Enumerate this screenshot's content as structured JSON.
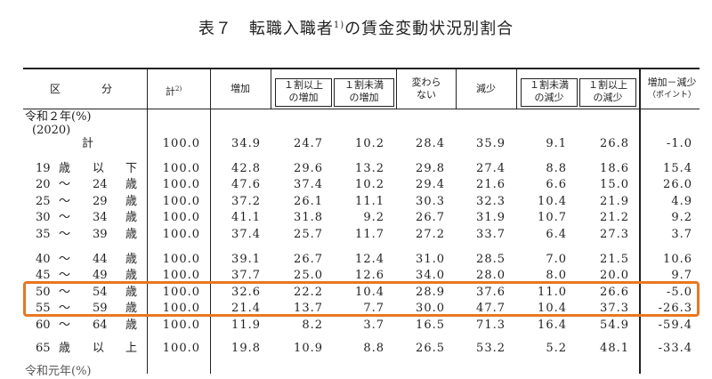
{
  "title": {
    "main": "表７　転職入職者",
    "sup": "1)",
    "tail": "の賃金変動状況別割合"
  },
  "header": {
    "category_1": "区",
    "category_2": "分",
    "total": "計",
    "total_sup": "2)",
    "increase": "増加",
    "inc_10_plus": [
      "１割以上",
      "の増加"
    ],
    "inc_under_10": [
      "１割未満",
      "の増加"
    ],
    "unchanged": [
      "変わら",
      "ない"
    ],
    "decrease": "減少",
    "dec_under_10": [
      "１割未満",
      "の減少"
    ],
    "dec_10_plus": [
      "１割以上",
      "の減少"
    ],
    "net": [
      "増加－減少",
      "（ポイント）"
    ]
  },
  "section": {
    "label": "令和２年(%)",
    "year": "(2020)",
    "next_label": "令和元年(%)"
  },
  "rows": [
    {
      "a": "",
      "b": "計",
      "c": "",
      "d": "",
      "values": [
        "100.0",
        "34.9",
        "24.7",
        "10.2",
        "28.4",
        "35.9",
        "9.1",
        "26.8",
        "-1.0"
      ]
    },
    {
      "a": "19",
      "b": "歳",
      "c": "以",
      "d": "下",
      "values": [
        "100.0",
        "42.8",
        "29.6",
        "13.2",
        "29.8",
        "27.4",
        "8.8",
        "18.6",
        "15.4"
      ]
    },
    {
      "a": "20",
      "b": "～",
      "c": "24",
      "d": "歳",
      "values": [
        "100.0",
        "47.6",
        "37.4",
        "10.2",
        "29.4",
        "21.6",
        "6.6",
        "15.0",
        "26.0"
      ]
    },
    {
      "a": "25",
      "b": "～",
      "c": "29",
      "d": "歳",
      "values": [
        "100.0",
        "37.2",
        "26.1",
        "11.1",
        "30.3",
        "32.3",
        "10.4",
        "21.9",
        "4.9"
      ]
    },
    {
      "a": "30",
      "b": "～",
      "c": "34",
      "d": "歳",
      "values": [
        "100.0",
        "41.1",
        "31.8",
        "9.2",
        "26.7",
        "31.9",
        "10.7",
        "21.2",
        "9.2"
      ]
    },
    {
      "a": "35",
      "b": "～",
      "c": "39",
      "d": "歳",
      "values": [
        "100.0",
        "37.4",
        "25.7",
        "11.7",
        "27.2",
        "33.7",
        "6.4",
        "27.3",
        "3.7"
      ]
    },
    {
      "a": "40",
      "b": "～",
      "c": "44",
      "d": "歳",
      "values": [
        "100.0",
        "39.1",
        "26.7",
        "12.4",
        "31.0",
        "28.5",
        "7.0",
        "21.5",
        "10.6"
      ]
    },
    {
      "a": "45",
      "b": "～",
      "c": "49",
      "d": "歳",
      "values": [
        "100.0",
        "37.7",
        "25.0",
        "12.6",
        "34.0",
        "28.0",
        "8.0",
        "20.0",
        "9.7"
      ]
    },
    {
      "a": "50",
      "b": "～",
      "c": "54",
      "d": "歳",
      "values": [
        "100.0",
        "32.6",
        "22.2",
        "10.4",
        "28.9",
        "37.6",
        "11.0",
        "26.6",
        "-5.0"
      ]
    },
    {
      "a": "55",
      "b": "～",
      "c": "59",
      "d": "歳",
      "values": [
        "100.0",
        "21.4",
        "13.7",
        "7.7",
        "30.0",
        "47.7",
        "10.4",
        "37.3",
        "-26.3"
      ]
    },
    {
      "a": "60",
      "b": "～",
      "c": "64",
      "d": "歳",
      "values": [
        "100.0",
        "11.9",
        "8.2",
        "3.7",
        "16.5",
        "71.3",
        "16.4",
        "54.9",
        "-59.4"
      ]
    },
    {
      "a": "65",
      "b": "歳",
      "c": "以",
      "d": "上",
      "values": [
        "100.0",
        "19.8",
        "10.9",
        "8.8",
        "26.5",
        "53.2",
        "5.2",
        "48.1",
        "-33.4"
      ]
    }
  ],
  "highlight_color": "#e87722"
}
